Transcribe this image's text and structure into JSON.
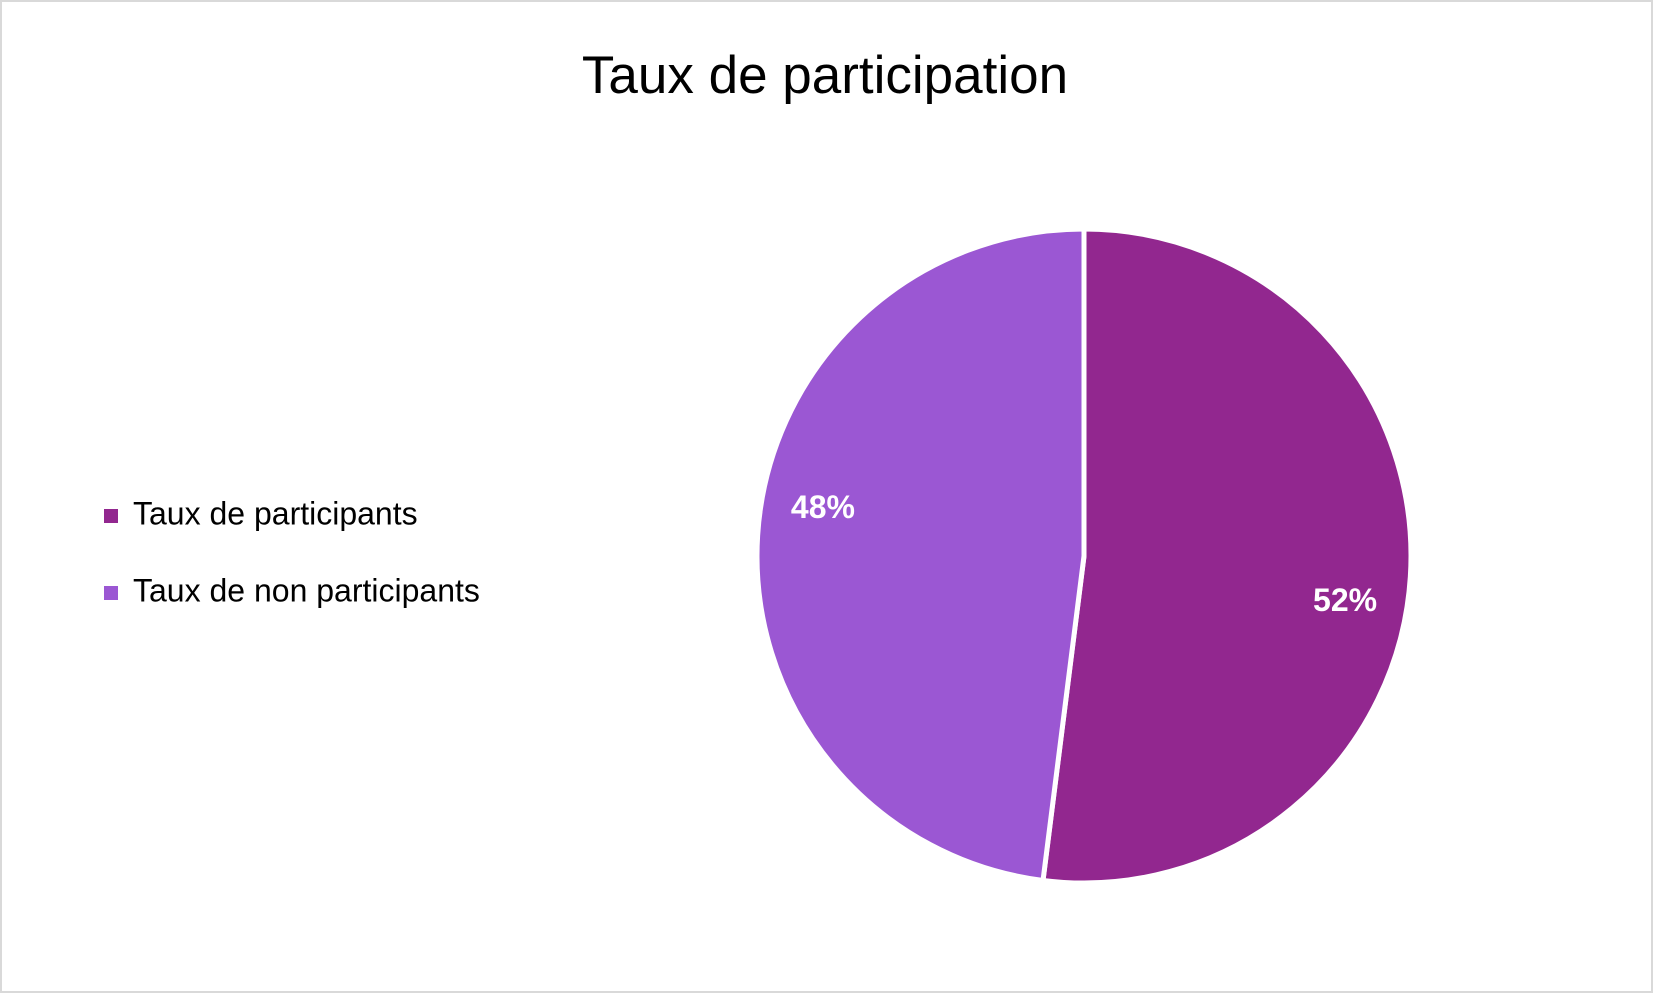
{
  "chart_data": {
    "type": "pie",
    "title": "Taux de participation",
    "categories": [
      "Taux de participants",
      "Taux de non participants"
    ],
    "values": [
      52,
      48
    ],
    "value_labels": [
      "52%",
      "48%"
    ],
    "colors": [
      "#92278f",
      "#9b57d3"
    ],
    "legend": "left"
  }
}
